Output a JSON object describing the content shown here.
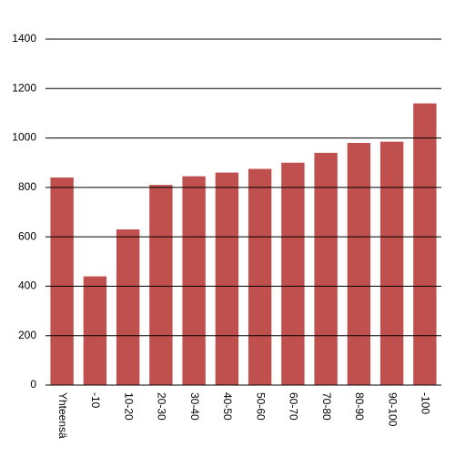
{
  "chart_data": {
    "type": "bar",
    "categories": [
      "Yhteensä",
      "-10",
      "10-20",
      "20-30",
      "30-40",
      "40-50",
      "50-60",
      "60-70",
      "70-80",
      "80-90",
      "90-100",
      "-100"
    ],
    "values": [
      840,
      440,
      630,
      810,
      845,
      860,
      875,
      900,
      940,
      980,
      985,
      1140
    ],
    "color": "#c0504d",
    "ylim": [
      0,
      1400
    ],
    "yticks": [
      0,
      200,
      400,
      600,
      800,
      1000,
      1200,
      1400
    ],
    "grid": true
  }
}
